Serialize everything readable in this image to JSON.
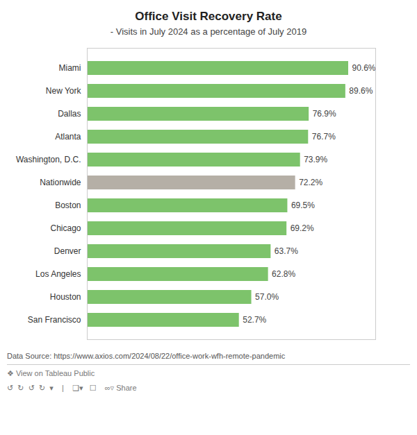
{
  "chart_data": {
    "type": "bar",
    "orientation": "horizontal",
    "title": "Office Visit Recovery Rate",
    "subtitle": "- Visits in July 2024 as a percentage of July 2019",
    "categories": [
      "Miami",
      "New York",
      "Dallas",
      "Atlanta",
      "Washington, D.C.",
      "Nationwide",
      "Boston",
      "Chicago",
      "Denver",
      "Los Angeles",
      "Houston",
      "San Francisco"
    ],
    "values": [
      90.6,
      89.6,
      76.9,
      76.7,
      73.9,
      72.2,
      69.5,
      69.2,
      63.7,
      62.8,
      57.0,
      52.7
    ],
    "value_labels": [
      "90.6%",
      "89.6%",
      "76.9%",
      "76.7%",
      "73.9%",
      "72.2%",
      "69.5%",
      "69.2%",
      "63.7%",
      "62.8%",
      "57.0%",
      "52.7%"
    ],
    "colors": [
      "#7dc36b",
      "#7dc36b",
      "#7dc36b",
      "#7dc36b",
      "#7dc36b",
      "#b5afa6",
      "#7dc36b",
      "#7dc36b",
      "#7dc36b",
      "#7dc36b",
      "#7dc36b",
      "#7dc36b"
    ],
    "data_labels": true,
    "xlim": [
      0,
      100
    ],
    "tick_labels": "y",
    "grid": false,
    "annotations": [
      "Data Source: https://www.axios.com/2024/08/22/office-work-wfh-remote-pandemic",
      "❖ View on Tableau Public",
      "↺  ↻  ↺  ↻  ▾    |    ❑▾   ☐    ∞▿ Share"
    ]
  }
}
